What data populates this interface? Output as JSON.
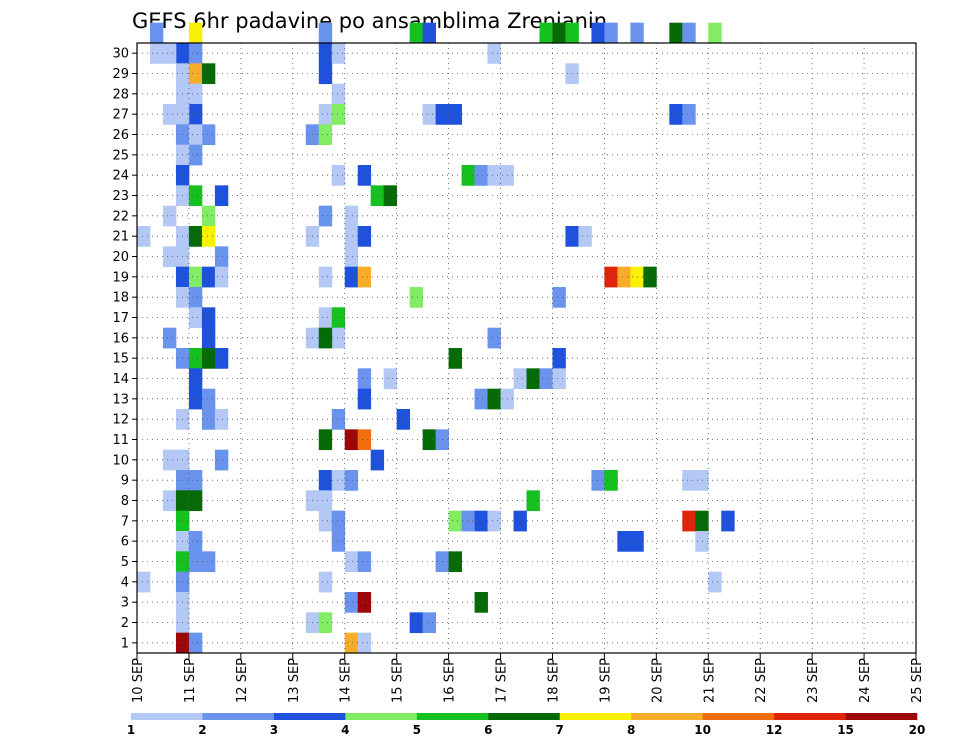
{
  "chart_data": {
    "type": "heatmap",
    "title": "GEFS 6hr padavine po ansamblima Zrenjanin",
    "y_categories": [
      "1",
      "2",
      "3",
      "4",
      "5",
      "6",
      "7",
      "8",
      "9",
      "10",
      "11",
      "12",
      "13",
      "14",
      "15",
      "16",
      "17",
      "18",
      "19",
      "20",
      "21",
      "22",
      "23",
      "24",
      "25",
      "26",
      "27",
      "28",
      "29",
      "30"
    ],
    "x_tick_labels": [
      "10 SEP",
      "11 SEP",
      "12 SEP",
      "13 SEP",
      "14 SEP",
      "15 SEP",
      "16 SEP",
      "17 SEP",
      "18 SEP",
      "19 SEP",
      "20 SEP",
      "21 SEP",
      "22 SEP",
      "23 SEP",
      "24 SEP",
      "25 SEP"
    ],
    "xlim": [
      0,
      60
    ],
    "time_step": "6hr",
    "grid": true,
    "colorbar": {
      "position": "bottom",
      "tick_labels": [
        "1",
        "2",
        "3",
        "4",
        "5",
        "6",
        "7",
        "8",
        "10",
        "12",
        "15",
        "20"
      ],
      "colors": [
        "#b3c8f5",
        "#6a93ee",
        "#1f52dc",
        "#82ec64",
        "#15c11f",
        "#066b06",
        "#f8f200",
        "#f8ad2a",
        "#f16e0e",
        "#e0240a",
        "#9c0707"
      ]
    },
    "cells": [
      [
        1,
        30,
        1
      ],
      [
        4,
        30,
        6
      ],
      [
        14,
        30,
        1
      ],
      [
        35,
        30,
        2
      ],
      [
        36,
        30,
        1
      ],
      [
        38,
        30,
        1
      ],
      [
        41,
        30,
        5
      ],
      [
        42,
        30,
        1
      ],
      [
        44,
        30,
        3
      ],
      [
        21,
        30,
        4
      ],
      [
        22,
        30,
        2
      ],
      [
        31,
        30,
        4
      ],
      [
        32,
        30,
        5
      ],
      [
        33,
        30,
        4
      ],
      [
        1,
        29,
        0
      ],
      [
        3,
        29,
        2
      ],
      [
        4,
        29,
        1
      ],
      [
        2,
        29,
        0
      ],
      [
        14,
        29,
        2
      ],
      [
        15,
        29,
        0
      ],
      [
        27,
        29,
        0
      ],
      [
        3,
        28,
        0
      ],
      [
        4,
        28,
        7
      ],
      [
        5,
        28,
        5
      ],
      [
        14,
        28,
        2
      ],
      [
        33,
        28,
        0
      ],
      [
        4,
        27,
        0
      ],
      [
        3,
        27,
        0
      ],
      [
        15,
        27,
        0
      ],
      [
        2,
        26,
        0
      ],
      [
        4,
        26,
        2
      ],
      [
        3,
        26,
        0
      ],
      [
        14,
        26,
        0
      ],
      [
        15,
        26,
        3
      ],
      [
        22,
        26,
        0
      ],
      [
        23,
        26,
        2
      ],
      [
        24,
        26,
        2
      ],
      [
        41,
        26,
        2
      ],
      [
        42,
        26,
        1
      ],
      [
        3,
        25,
        1
      ],
      [
        5,
        25,
        1
      ],
      [
        4,
        25,
        0
      ],
      [
        13,
        25,
        1
      ],
      [
        14,
        25,
        3
      ],
      [
        4,
        24,
        1
      ],
      [
        3,
        24,
        0
      ],
      [
        3,
        23,
        2
      ],
      [
        15,
        23,
        0
      ],
      [
        17,
        23,
        2
      ],
      [
        25,
        23,
        4
      ],
      [
        26,
        23,
        1
      ],
      [
        27,
        23,
        0
      ],
      [
        28,
        23,
        0
      ],
      [
        3,
        22,
        0
      ],
      [
        4,
        22,
        4
      ],
      [
        6,
        22,
        2
      ],
      [
        18,
        22,
        4
      ],
      [
        19,
        22,
        5
      ],
      [
        2,
        21,
        0
      ],
      [
        5,
        21,
        3
      ],
      [
        14,
        21,
        1
      ],
      [
        16,
        21,
        0
      ],
      [
        0,
        20,
        0
      ],
      [
        3,
        20,
        0
      ],
      [
        4,
        20,
        5
      ],
      [
        5,
        20,
        6
      ],
      [
        13,
        20,
        0
      ],
      [
        16,
        20,
        0
      ],
      [
        17,
        20,
        2
      ],
      [
        33,
        20,
        2
      ],
      [
        34,
        20,
        0
      ],
      [
        2,
        19,
        0
      ],
      [
        3,
        19,
        0
      ],
      [
        6,
        19,
        1
      ],
      [
        16,
        19,
        0
      ],
      [
        3,
        18,
        2
      ],
      [
        4,
        18,
        3
      ],
      [
        5,
        18,
        2
      ],
      [
        6,
        18,
        0
      ],
      [
        14,
        18,
        0
      ],
      [
        16,
        18,
        2
      ],
      [
        17,
        18,
        7
      ],
      [
        36,
        18,
        9
      ],
      [
        37,
        18,
        7
      ],
      [
        38,
        18,
        6
      ],
      [
        39,
        18,
        5
      ],
      [
        3,
        17,
        0
      ],
      [
        4,
        17,
        1
      ],
      [
        21,
        17,
        3
      ],
      [
        32,
        17,
        1
      ],
      [
        4,
        16,
        0
      ],
      [
        5,
        16,
        2
      ],
      [
        14,
        16,
        0
      ],
      [
        15,
        16,
        4
      ],
      [
        2,
        15,
        1
      ],
      [
        5,
        15,
        2
      ],
      [
        15,
        15,
        0
      ],
      [
        13,
        15,
        0
      ],
      [
        14,
        15,
        5
      ],
      [
        27,
        15,
        1
      ],
      [
        3,
        14,
        1
      ],
      [
        4,
        14,
        4
      ],
      [
        5,
        14,
        5
      ],
      [
        6,
        14,
        2
      ],
      [
        24,
        14,
        5
      ],
      [
        32,
        14,
        2
      ],
      [
        4,
        13,
        2
      ],
      [
        17,
        13,
        1
      ],
      [
        19,
        13,
        0
      ],
      [
        29,
        13,
        0
      ],
      [
        30,
        13,
        5
      ],
      [
        31,
        13,
        1
      ],
      [
        32,
        13,
        0
      ],
      [
        4,
        12,
        2
      ],
      [
        5,
        12,
        1
      ],
      [
        17,
        12,
        2
      ],
      [
        26,
        12,
        1
      ],
      [
        27,
        12,
        5
      ],
      [
        28,
        12,
        0
      ],
      [
        3,
        11,
        0
      ],
      [
        5,
        11,
        1
      ],
      [
        6,
        11,
        0
      ],
      [
        15,
        11,
        1
      ],
      [
        20,
        11,
        2
      ],
      [
        14,
        10,
        5
      ],
      [
        16,
        10,
        10
      ],
      [
        17,
        10,
        8
      ],
      [
        22,
        10,
        5
      ],
      [
        23,
        10,
        1
      ],
      [
        2,
        9,
        0
      ],
      [
        3,
        9,
        0
      ],
      [
        6,
        9,
        1
      ],
      [
        18,
        9,
        2
      ],
      [
        3,
        8,
        1
      ],
      [
        4,
        8,
        1
      ],
      [
        14,
        8,
        2
      ],
      [
        15,
        8,
        0
      ],
      [
        16,
        8,
        1
      ],
      [
        35,
        8,
        1
      ],
      [
        36,
        8,
        4
      ],
      [
        42,
        8,
        0
      ],
      [
        43,
        8,
        0
      ],
      [
        2,
        7,
        0
      ],
      [
        3,
        7,
        5
      ],
      [
        4,
        7,
        5
      ],
      [
        13,
        7,
        0
      ],
      [
        14,
        7,
        0
      ],
      [
        30,
        7,
        4
      ],
      [
        3,
        6,
        4
      ],
      [
        14,
        6,
        0
      ],
      [
        15,
        6,
        1
      ],
      [
        24,
        6,
        3
      ],
      [
        25,
        6,
        1
      ],
      [
        26,
        6,
        2
      ],
      [
        27,
        6,
        0
      ],
      [
        29,
        6,
        2
      ],
      [
        42,
        6,
        9
      ],
      [
        43,
        6,
        5
      ],
      [
        45,
        6,
        2
      ],
      [
        3,
        5,
        0
      ],
      [
        4,
        5,
        1
      ],
      [
        15,
        5,
        1
      ],
      [
        37,
        5,
        2
      ],
      [
        38,
        5,
        2
      ],
      [
        43,
        5,
        0
      ],
      [
        3,
        4,
        4
      ],
      [
        4,
        4,
        1
      ],
      [
        5,
        4,
        1
      ],
      [
        16,
        4,
        0
      ],
      [
        17,
        4,
        1
      ],
      [
        23,
        4,
        1
      ],
      [
        24,
        4,
        5
      ],
      [
        0,
        3,
        0
      ],
      [
        3,
        3,
        1
      ],
      [
        14,
        3,
        0
      ],
      [
        44,
        3,
        0
      ],
      [
        3,
        2,
        0
      ],
      [
        16,
        2,
        1
      ],
      [
        17,
        2,
        10
      ],
      [
        26,
        2,
        5
      ],
      [
        3,
        1,
        0
      ],
      [
        13,
        1,
        0
      ],
      [
        14,
        1,
        3
      ],
      [
        21,
        1,
        2
      ],
      [
        22,
        1,
        1
      ],
      [
        3,
        0,
        10
      ],
      [
        4,
        0,
        1
      ],
      [
        16,
        0,
        7
      ],
      [
        17,
        0,
        0
      ]
    ]
  }
}
